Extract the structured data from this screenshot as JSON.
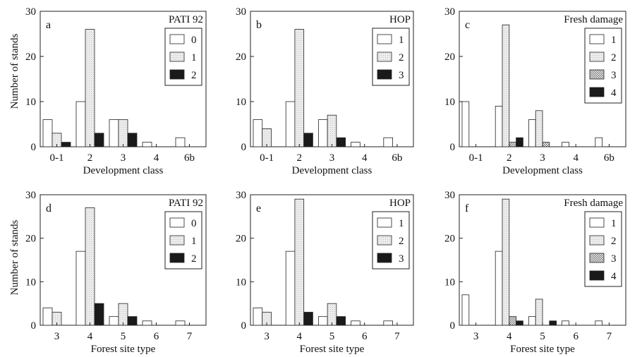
{
  "figure": {
    "y_axis_label": "Number of stands",
    "colors": {
      "axis": "#222222",
      "white": "#ffffff",
      "light": "#e4e4e4",
      "hatch": "#b0b0b0",
      "black": "#1a1a1a"
    }
  },
  "chart_data": [
    {
      "panel": "a",
      "type": "bar",
      "legend_title": "PATI 92",
      "xlabel": "Development class",
      "ylabel": "Number of stands",
      "categories": [
        "0-1",
        "2",
        "3",
        "4",
        "6b"
      ],
      "ylim": [
        0,
        30
      ],
      "yticks": [
        0,
        10,
        20,
        30
      ],
      "legend_position": "top-right",
      "series": [
        {
          "name": "0",
          "fill": "white",
          "values": [
            6,
            10,
            6,
            1,
            2
          ]
        },
        {
          "name": "1",
          "fill": "light",
          "values": [
            3,
            26,
            6,
            0,
            0
          ]
        },
        {
          "name": "2",
          "fill": "black",
          "values": [
            1,
            3,
            3,
            0,
            0
          ]
        }
      ]
    },
    {
      "panel": "b",
      "type": "bar",
      "legend_title": "HOP",
      "xlabel": "Development class",
      "ylabel": "",
      "categories": [
        "0-1",
        "2",
        "3",
        "4",
        "6b"
      ],
      "ylim": [
        0,
        30
      ],
      "yticks": [
        0,
        10,
        20,
        30
      ],
      "legend_position": "top-right",
      "series": [
        {
          "name": "1",
          "fill": "white",
          "values": [
            6,
            10,
            6,
            1,
            2
          ]
        },
        {
          "name": "2",
          "fill": "light",
          "values": [
            4,
            26,
            7,
            0,
            0
          ]
        },
        {
          "name": "3",
          "fill": "black",
          "values": [
            0,
            3,
            2,
            0,
            0
          ]
        }
      ]
    },
    {
      "panel": "c",
      "type": "bar",
      "legend_title": "Fresh damage",
      "xlabel": "Development class",
      "ylabel": "",
      "categories": [
        "0-1",
        "2",
        "3",
        "4",
        "6b"
      ],
      "ylim": [
        0,
        30
      ],
      "yticks": [
        0,
        10,
        20,
        30
      ],
      "legend_position": "top-right",
      "series": [
        {
          "name": "1",
          "fill": "white",
          "values": [
            10,
            9,
            6,
            1,
            2
          ]
        },
        {
          "name": "2",
          "fill": "light",
          "values": [
            0,
            27,
            8,
            0,
            0
          ]
        },
        {
          "name": "3",
          "fill": "hatch",
          "values": [
            0,
            1,
            1,
            0,
            0
          ]
        },
        {
          "name": "4",
          "fill": "black",
          "values": [
            0,
            2,
            0,
            0,
            0
          ]
        }
      ]
    },
    {
      "panel": "d",
      "type": "bar",
      "legend_title": "PATI 92",
      "xlabel": "Forest site type",
      "ylabel": "Number of stands",
      "categories": [
        "3",
        "4",
        "5",
        "6",
        "7"
      ],
      "ylim": [
        0,
        30
      ],
      "yticks": [
        0,
        10,
        20,
        30
      ],
      "legend_position": "top-right",
      "series": [
        {
          "name": "0",
          "fill": "white",
          "values": [
            4,
            17,
            2,
            1,
            1
          ]
        },
        {
          "name": "1",
          "fill": "light",
          "values": [
            3,
            27,
            5,
            0,
            0
          ]
        },
        {
          "name": "2",
          "fill": "black",
          "values": [
            0,
            5,
            2,
            0,
            0
          ]
        }
      ]
    },
    {
      "panel": "e",
      "type": "bar",
      "legend_title": "HOP",
      "xlabel": "Forest site type",
      "ylabel": "",
      "categories": [
        "3",
        "4",
        "5",
        "6",
        "7"
      ],
      "ylim": [
        0,
        30
      ],
      "yticks": [
        0,
        10,
        20,
        30
      ],
      "legend_position": "top-right",
      "series": [
        {
          "name": "1",
          "fill": "white",
          "values": [
            4,
            17,
            2,
            1,
            1
          ]
        },
        {
          "name": "2",
          "fill": "light",
          "values": [
            3,
            29,
            5,
            0,
            0
          ]
        },
        {
          "name": "3",
          "fill": "black",
          "values": [
            0,
            3,
            2,
            0,
            0
          ]
        }
      ]
    },
    {
      "panel": "f",
      "type": "bar",
      "legend_title": "Fresh damage",
      "xlabel": "Forest site type",
      "ylabel": "",
      "categories": [
        "3",
        "4",
        "5",
        "6",
        "7"
      ],
      "ylim": [
        0,
        30
      ],
      "yticks": [
        0,
        10,
        20,
        30
      ],
      "legend_position": "top-right",
      "series": [
        {
          "name": "1",
          "fill": "white",
          "values": [
            7,
            17,
            2,
            1,
            1
          ]
        },
        {
          "name": "2",
          "fill": "light",
          "values": [
            0,
            29,
            6,
            0,
            0
          ]
        },
        {
          "name": "3",
          "fill": "hatch",
          "values": [
            0,
            2,
            0,
            0,
            0
          ]
        },
        {
          "name": "4",
          "fill": "black",
          "values": [
            0,
            1,
            1,
            0,
            0
          ]
        }
      ]
    }
  ]
}
